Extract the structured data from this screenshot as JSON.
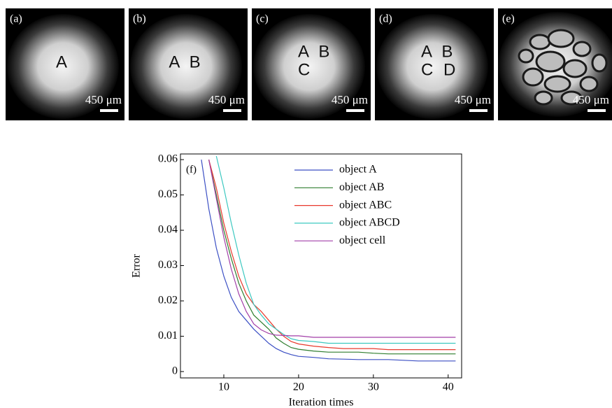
{
  "panels": [
    {
      "label": "(a)",
      "letters": [
        "A"
      ],
      "scale": "450 μm"
    },
    {
      "label": "(b)",
      "letters": [
        "A B"
      ],
      "scale": "450 μm"
    },
    {
      "label": "(c)",
      "letters": [
        "A B",
        "C"
      ],
      "scale": "450 μm"
    },
    {
      "label": "(d)",
      "letters": [
        "A B",
        "C D"
      ],
      "scale": "450 μm"
    },
    {
      "label": "(e)",
      "letters": [],
      "scale": "450 μm"
    }
  ],
  "chart_data": {
    "type": "line",
    "annotation": "(f)",
    "x_label": "Iteration times",
    "y_label": "Error",
    "x": [
      7,
      8,
      9,
      10,
      11,
      12,
      13,
      14,
      15,
      16,
      17,
      18,
      19,
      20,
      22,
      24,
      26,
      28,
      30,
      32,
      34,
      36,
      38,
      40,
      41
    ],
    "xlim": [
      4.2,
      41.8
    ],
    "xticks": [
      10,
      20,
      30,
      40
    ],
    "ylim": [
      -0.0018,
      0.0616
    ],
    "yticks": [
      0,
      0.01,
      0.02,
      0.03,
      0.04,
      0.05,
      0.06
    ],
    "series": [
      {
        "name": "object A",
        "color": "#3b4fc4",
        "values": [
          0.06,
          0.046,
          0.035,
          0.027,
          0.021,
          0.017,
          0.0145,
          0.012,
          0.01,
          0.008,
          0.0065,
          0.0055,
          0.0048,
          0.0043,
          0.004,
          0.0036,
          0.0035,
          0.0034,
          0.0034,
          0.0034,
          0.0032,
          0.003,
          0.003,
          0.003,
          0.003
        ]
      },
      {
        "name": "object AB",
        "color": "#2e7d2e",
        "values": [
          null,
          0.06,
          0.05,
          0.04,
          0.032,
          0.025,
          0.02,
          0.016,
          0.014,
          0.012,
          0.0095,
          0.008,
          0.0068,
          0.0063,
          0.0058,
          0.0055,
          0.0055,
          0.0055,
          0.0052,
          0.005,
          0.005,
          0.005,
          0.005,
          0.005,
          0.005
        ]
      },
      {
        "name": "object ABC",
        "color": "#e8392c",
        "values": [
          null,
          0.06,
          0.052,
          0.042,
          0.034,
          0.027,
          0.022,
          0.019,
          0.017,
          0.0145,
          0.012,
          0.01,
          0.0085,
          0.0078,
          0.0072,
          0.0068,
          0.0065,
          0.0065,
          0.0065,
          0.0062,
          0.0062,
          0.0062,
          0.0062,
          0.0062,
          0.0062
        ]
      },
      {
        "name": "object ABCD",
        "color": "#3cc8c0",
        "values": [
          null,
          null,
          0.061,
          0.052,
          0.042,
          0.033,
          0.025,
          0.019,
          0.016,
          0.0135,
          0.012,
          0.0105,
          0.0093,
          0.0088,
          0.0085,
          0.008,
          0.008,
          0.008,
          0.008,
          0.008,
          0.008,
          0.008,
          0.008,
          0.008,
          0.008
        ]
      },
      {
        "name": "object cell",
        "color": "#a23fa8",
        "values": [
          null,
          0.06,
          0.049,
          0.038,
          0.029,
          0.022,
          0.017,
          0.0135,
          0.0118,
          0.0108,
          0.0103,
          0.0102,
          0.0101,
          0.0101,
          0.0097,
          0.0097,
          0.0097,
          0.0097,
          0.0097,
          0.0097,
          0.0097,
          0.0097,
          0.0097,
          0.0097,
          0.0097
        ]
      }
    ]
  }
}
